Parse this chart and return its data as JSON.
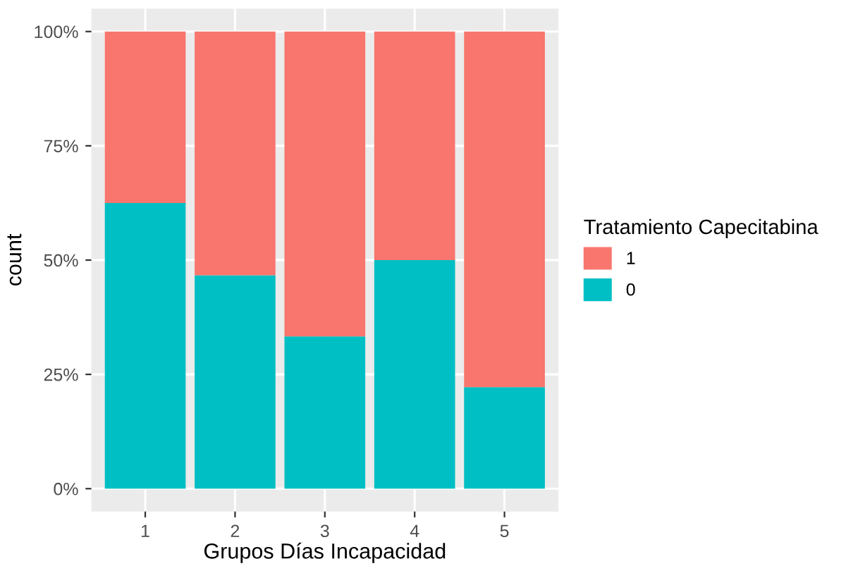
{
  "chart_data": {
    "type": "bar",
    "stacked": true,
    "xlabel": "Grupos Días Incapacidad",
    "ylabel": "count",
    "legend_title": "Tratamiento Capecitabina",
    "categories": [
      "1",
      "2",
      "3",
      "4",
      "5"
    ],
    "series": [
      {
        "name": "0",
        "color": "#00bfc4",
        "values": [
          62.5,
          46.7,
          33.3,
          50,
          22.2
        ]
      },
      {
        "name": "1",
        "color": "#f8766d",
        "values": [
          37.5,
          53.3,
          66.7,
          50,
          77.8
        ]
      }
    ],
    "ylim": [
      -5,
      105
    ],
    "yticks": [
      {
        "value": 0,
        "label": "0%"
      },
      {
        "value": 25,
        "label": "25%"
      },
      {
        "value": 50,
        "label": "50%"
      },
      {
        "value": 75,
        "label": "75%"
      },
      {
        "value": 100,
        "label": "100%"
      }
    ],
    "grid": true,
    "legend": "right"
  }
}
